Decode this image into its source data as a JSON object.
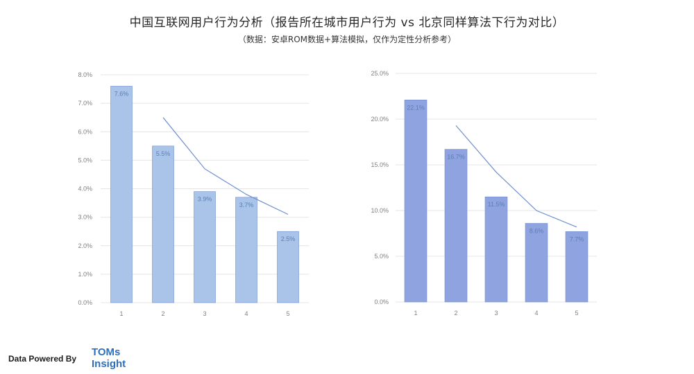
{
  "header": {
    "title": "中国互联网用户行为分析（报告所在城市用户行为 vs 北京同样算法下行为对比）",
    "subtitle": "（数据：安卓ROM数据+算法模拟，仅作为定性分析参考）"
  },
  "footer": {
    "powered_by": "Data Powered By",
    "logo_line1": "TOMs",
    "logo_line2": "Insight"
  },
  "colors": {
    "bar_left": "#a9c4e8",
    "bar_right": "#8fa3e0",
    "bar_stroke": "#6f8fcf",
    "line": "#6f8fcf",
    "grid": "#e4e4e4"
  },
  "chart_data": [
    {
      "type": "bar",
      "categories": [
        "1",
        "2",
        "3",
        "4",
        "5"
      ],
      "series": [
        {
          "values": [
            7.6,
            5.5,
            3.9,
            3.7,
            2.5
          ],
          "data_labels": [
            "7.6%",
            "5.5%",
            "3.9%",
            "3.7%",
            "2.5%"
          ]
        }
      ],
      "overlay_line": {
        "x": [
          "2",
          "3",
          "4",
          "5"
        ],
        "values": [
          6.5,
          4.7,
          3.8,
          3.1
        ]
      },
      "ylim": [
        0,
        8
      ],
      "yticks": [
        "0.0%",
        "1.0%",
        "2.0%",
        "3.0%",
        "4.0%",
        "5.0%",
        "6.0%",
        "7.0%",
        "8.0%"
      ],
      "grid": true
    },
    {
      "type": "bar",
      "categories": [
        "1",
        "2",
        "3",
        "4",
        "5"
      ],
      "series": [
        {
          "values": [
            22.1,
            16.7,
            11.5,
            8.6,
            7.7
          ],
          "data_labels": [
            "22.1%",
            "16.7%",
            "11.5%",
            "8.6%",
            "7.7%"
          ]
        }
      ],
      "overlay_line": {
        "x": [
          "2",
          "3",
          "4",
          "5"
        ],
        "values": [
          19.3,
          14.2,
          10.0,
          8.2
        ]
      },
      "ylim": [
        0,
        25
      ],
      "yticks": [
        "0.0%",
        "5.0%",
        "10.0%",
        "15.0%",
        "20.0%",
        "25.0%"
      ],
      "grid": true
    }
  ]
}
